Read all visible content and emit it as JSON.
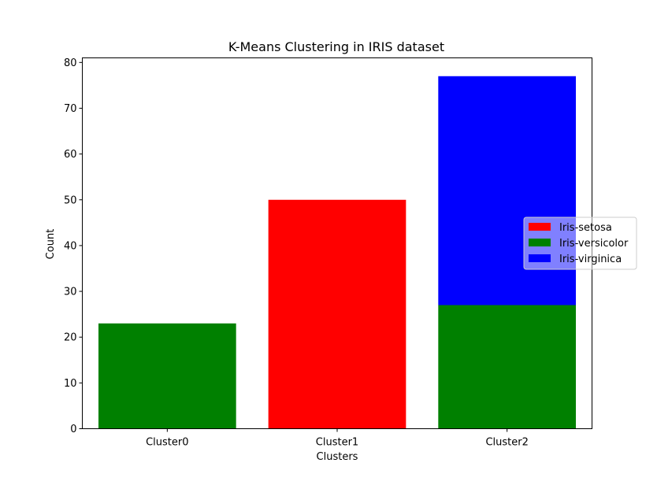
{
  "chart_data": {
    "type": "bar",
    "stacked": true,
    "title": "K-Means Clustering in IRIS dataset",
    "xlabel": "Clusters",
    "ylabel": "Count",
    "categories": [
      "Cluster0",
      "Cluster1",
      "Cluster2"
    ],
    "series": [
      {
        "name": "Iris-setosa",
        "color": "#ff0000",
        "values": [
          0,
          50,
          0
        ]
      },
      {
        "name": "Iris-versicolor",
        "color": "#008000",
        "values": [
          23,
          0,
          27
        ]
      },
      {
        "name": "Iris-virginica",
        "color": "#0000ff",
        "values": [
          0,
          0,
          50
        ]
      }
    ],
    "ylim": [
      0,
      81
    ],
    "yticks": [
      0,
      10,
      20,
      30,
      40,
      50,
      60,
      70,
      80
    ],
    "grid": false,
    "legend_position": "center-right"
  }
}
